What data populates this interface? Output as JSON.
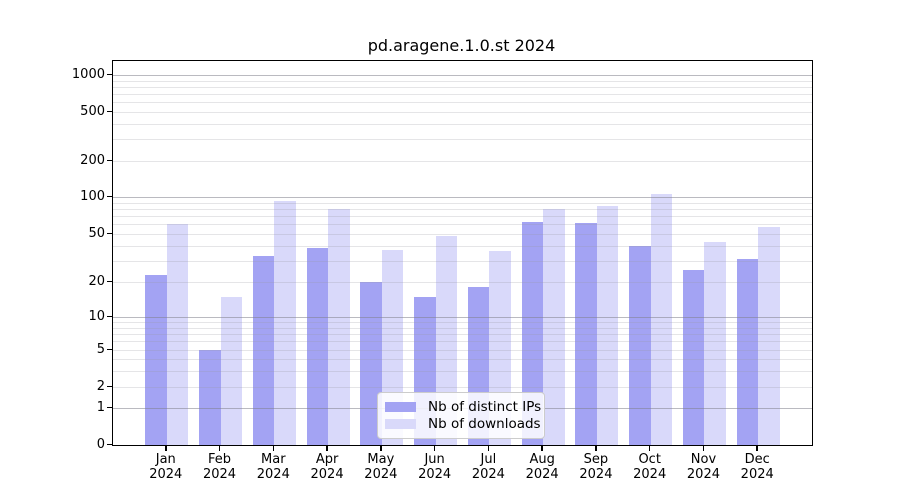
{
  "title": "pd.aragene.1.0.st 2024",
  "colors": {
    "bar_distinct_ips": "#a3a3f3",
    "bar_downloads": "#d9d9fa",
    "grid_major": "rgba(130,130,140,0.55)",
    "grid_minor": "rgba(150,150,160,0.25)",
    "spine": "#000000",
    "legend_border": "#cccccc",
    "legend_background": "rgba(255,255,255,0.85)"
  },
  "chart_data": {
    "type": "bar",
    "title": "pd.aragene.1.0.st 2024",
    "categories": [
      "Jan 2024",
      "Feb 2024",
      "Mar 2024",
      "Apr 2024",
      "May 2024",
      "Jun 2024",
      "Jul 2024",
      "Aug 2024",
      "Sep 2024",
      "Oct 2024",
      "Nov 2024",
      "Dec 2024"
    ],
    "series": [
      {
        "name": "Nb of distinct IPs",
        "values": [
          23,
          5,
          33,
          38,
          20,
          15,
          18,
          63,
          62,
          40,
          25,
          31
        ]
      },
      {
        "name": "Nb of downloads",
        "values": [
          60,
          15,
          93,
          80,
          37,
          48,
          36,
          80,
          85,
          105,
          43,
          57
        ]
      }
    ],
    "yscale": "symlog",
    "yticks": [
      0,
      1,
      2,
      5,
      10,
      20,
      50,
      100,
      200,
      500,
      1000
    ],
    "ylim": [
      0,
      1300
    ],
    "xlabel": "",
    "ylabel": "",
    "grid": true,
    "legend_position": "lower center"
  }
}
